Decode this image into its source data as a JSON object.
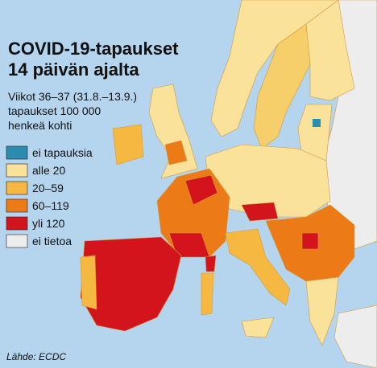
{
  "title": [
    "COVID-19-tapaukset",
    "14 päivän ajalta"
  ],
  "subtitle": [
    "Viikot 36–37 (31.8.–13.9.)",
    "tapaukset 100 000",
    "henkeä kohti"
  ],
  "legend": [
    {
      "label": "ei tapauksia",
      "color": "#2b8cb0"
    },
    {
      "label": "alle 20",
      "color": "#fbe29a"
    },
    {
      "label": "20–59",
      "color": "#f5b942"
    },
    {
      "label": "60–119",
      "color": "#ec7a16"
    },
    {
      "label": "yli 120",
      "color": "#d4141c"
    },
    {
      "label": "ei tietoa",
      "color": "#ededed"
    }
  ],
  "source": "Lähde: ECDC"
}
